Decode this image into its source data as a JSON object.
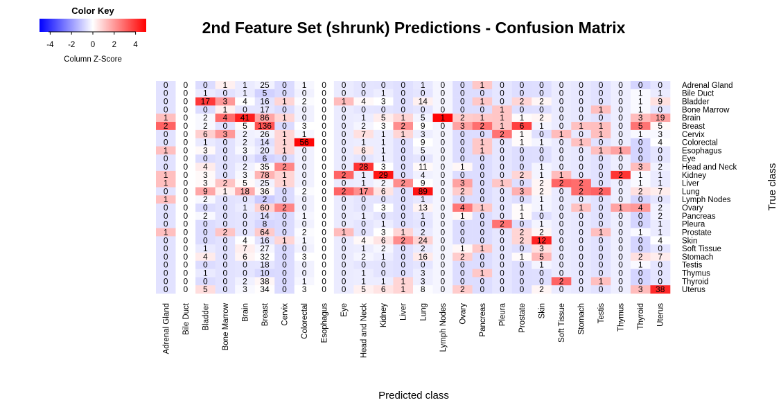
{
  "chart_data": {
    "type": "heatmap",
    "title": "2nd Feature Set (shrunk) Predictions - Confusion Matrix",
    "xlabel": "Predicted class",
    "ylabel": "True class",
    "rows": [
      "Adrenal Gland",
      "Bile Duct",
      "Bladder",
      "Bone Marrow",
      "Brain",
      "Breast",
      "Cervix",
      "Colorectal",
      "Esophagus",
      "Eye",
      "Head and Neck",
      "Kidney",
      "Liver",
      "Lung",
      "Lymph Nodes",
      "Ovary",
      "Pancreas",
      "Pleura",
      "Prostate",
      "Skin",
      "Soft Tissue",
      "Stomach",
      "Testis",
      "Thymus",
      "Thyroid",
      "Uterus"
    ],
    "columns": [
      "Adrenal Gland",
      "Bile Duct",
      "Bladder",
      "Bone Marrow",
      "Brain",
      "Breast",
      "Cervix",
      "Colorectal",
      "Esophagus",
      "Eye",
      "Head and Neck",
      "Kidney",
      "Liver",
      "Lung",
      "Lymph Nodes",
      "Ovary",
      "Pancreas",
      "Pleura",
      "Prostate",
      "Skin",
      "Soft Tissue",
      "Stomach",
      "Testis",
      "Thymus",
      "Thyroid",
      "Uterus"
    ],
    "values": [
      [
        0,
        0,
        0,
        1,
        1,
        25,
        0,
        1,
        0,
        0,
        0,
        0,
        0,
        1,
        0,
        0,
        1,
        0,
        0,
        0,
        0,
        0,
        0,
        0,
        0,
        0
      ],
      [
        0,
        0,
        1,
        0,
        1,
        5,
        0,
        0,
        0,
        0,
        0,
        1,
        0,
        0,
        0,
        0,
        0,
        0,
        0,
        0,
        0,
        0,
        0,
        0,
        1,
        1
      ],
      [
        0,
        0,
        17,
        3,
        4,
        16,
        1,
        2,
        0,
        1,
        4,
        3,
        0,
        14,
        0,
        0,
        1,
        0,
        2,
        2,
        0,
        0,
        0,
        0,
        1,
        9
      ],
      [
        0,
        0,
        0,
        1,
        0,
        17,
        0,
        0,
        0,
        0,
        0,
        0,
        0,
        0,
        0,
        0,
        0,
        1,
        0,
        0,
        0,
        0,
        1,
        0,
        1,
        0
      ],
      [
        1,
        0,
        2,
        4,
        41,
        86,
        1,
        0,
        0,
        0,
        1,
        5,
        1,
        5,
        1,
        2,
        1,
        1,
        1,
        2,
        0,
        0,
        0,
        0,
        3,
        19
      ],
      [
        2,
        0,
        2,
        0,
        5,
        136,
        0,
        3,
        0,
        0,
        2,
        3,
        2,
        9,
        0,
        3,
        2,
        1,
        6,
        1,
        0,
        1,
        1,
        0,
        5,
        5
      ],
      [
        0,
        0,
        6,
        3,
        2,
        26,
        1,
        1,
        0,
        0,
        7,
        1,
        1,
        3,
        0,
        0,
        0,
        2,
        1,
        0,
        1,
        0,
        1,
        0,
        1,
        3
      ],
      [
        0,
        0,
        1,
        0,
        2,
        14,
        1,
        56,
        0,
        0,
        1,
        1,
        0,
        9,
        0,
        0,
        1,
        0,
        1,
        1,
        0,
        1,
        0,
        0,
        0,
        4
      ],
      [
        1,
        0,
        3,
        0,
        3,
        20,
        1,
        0,
        0,
        0,
        6,
        1,
        0,
        5,
        0,
        0,
        1,
        0,
        0,
        0,
        0,
        0,
        1,
        1,
        0,
        0
      ],
      [
        0,
        0,
        0,
        0,
        0,
        6,
        0,
        0,
        0,
        0,
        0,
        1,
        0,
        0,
        0,
        0,
        0,
        0,
        0,
        0,
        0,
        0,
        0,
        0,
        0,
        0
      ],
      [
        0,
        0,
        4,
        0,
        2,
        35,
        2,
        0,
        0,
        0,
        28,
        3,
        0,
        11,
        0,
        1,
        0,
        0,
        0,
        1,
        0,
        0,
        0,
        0,
        3,
        2
      ],
      [
        1,
        0,
        3,
        0,
        3,
        78,
        1,
        0,
        0,
        2,
        1,
        29,
        0,
        4,
        0,
        0,
        0,
        0,
        2,
        1,
        1,
        0,
        0,
        2,
        1,
        1
      ],
      [
        1,
        0,
        3,
        2,
        5,
        25,
        1,
        0,
        0,
        0,
        1,
        2,
        2,
        9,
        0,
        3,
        0,
        1,
        0,
        2,
        2,
        2,
        0,
        0,
        1,
        1
      ],
      [
        0,
        0,
        9,
        1,
        18,
        36,
        0,
        2,
        0,
        2,
        17,
        6,
        0,
        89,
        0,
        2,
        0,
        0,
        3,
        2,
        0,
        2,
        2,
        0,
        2,
        7
      ],
      [
        1,
        0,
        2,
        0,
        0,
        2,
        0,
        0,
        0,
        0,
        0,
        0,
        0,
        1,
        0,
        0,
        0,
        0,
        0,
        1,
        0,
        0,
        0,
        0,
        0,
        0
      ],
      [
        0,
        0,
        0,
        0,
        1,
        60,
        2,
        0,
        0,
        0,
        0,
        3,
        0,
        13,
        0,
        4,
        1,
        0,
        1,
        1,
        0,
        1,
        0,
        1,
        4,
        2
      ],
      [
        0,
        0,
        2,
        0,
        0,
        14,
        0,
        1,
        0,
        0,
        1,
        0,
        0,
        1,
        0,
        1,
        0,
        0,
        1,
        0,
        0,
        0,
        0,
        0,
        0,
        2
      ],
      [
        0,
        0,
        0,
        0,
        0,
        8,
        0,
        0,
        0,
        0,
        0,
        1,
        0,
        0,
        0,
        0,
        0,
        2,
        0,
        1,
        0,
        0,
        0,
        0,
        0,
        1
      ],
      [
        1,
        0,
        0,
        2,
        0,
        64,
        0,
        2,
        0,
        1,
        0,
        3,
        1,
        2,
        0,
        0,
        0,
        0,
        2,
        2,
        0,
        0,
        1,
        0,
        1,
        1
      ],
      [
        0,
        0,
        0,
        0,
        4,
        16,
        1,
        1,
        0,
        0,
        4,
        6,
        2,
        24,
        0,
        0,
        0,
        0,
        2,
        12,
        0,
        0,
        0,
        0,
        0,
        4
      ],
      [
        0,
        0,
        1,
        0,
        7,
        27,
        0,
        0,
        0,
        0,
        1,
        2,
        0,
        2,
        0,
        1,
        1,
        0,
        0,
        3,
        0,
        0,
        0,
        0,
        0,
        0
      ],
      [
        0,
        0,
        4,
        0,
        6,
        32,
        0,
        3,
        0,
        0,
        2,
        1,
        0,
        16,
        0,
        2,
        0,
        0,
        1,
        5,
        0,
        0,
        0,
        0,
        2,
        7
      ],
      [
        0,
        0,
        0,
        0,
        0,
        18,
        0,
        0,
        0,
        0,
        0,
        0,
        0,
        0,
        0,
        0,
        0,
        0,
        0,
        1,
        0,
        0,
        0,
        0,
        1,
        0
      ],
      [
        0,
        0,
        1,
        0,
        0,
        10,
        0,
        0,
        0,
        0,
        1,
        0,
        0,
        3,
        0,
        0,
        1,
        0,
        0,
        0,
        0,
        0,
        0,
        0,
        0,
        0
      ],
      [
        0,
        0,
        0,
        0,
        2,
        38,
        0,
        1,
        0,
        0,
        1,
        1,
        1,
        3,
        0,
        0,
        0,
        0,
        0,
        0,
        2,
        0,
        1,
        0,
        0,
        0
      ],
      [
        0,
        0,
        5,
        0,
        3,
        34,
        0,
        3,
        0,
        0,
        5,
        6,
        1,
        8,
        0,
        2,
        0,
        0,
        0,
        2,
        0,
        0,
        0,
        0,
        3,
        38
      ]
    ],
    "scale": "column z-score",
    "color_range": [
      -5,
      5
    ],
    "colors": {
      "low": "#0000ff",
      "mid": "#ffffff",
      "high": "#ff0000"
    },
    "color_key": {
      "title": "Color Key",
      "label": "Column Z-Score",
      "ticks": [
        -4,
        -2,
        0,
        2,
        4
      ]
    }
  }
}
